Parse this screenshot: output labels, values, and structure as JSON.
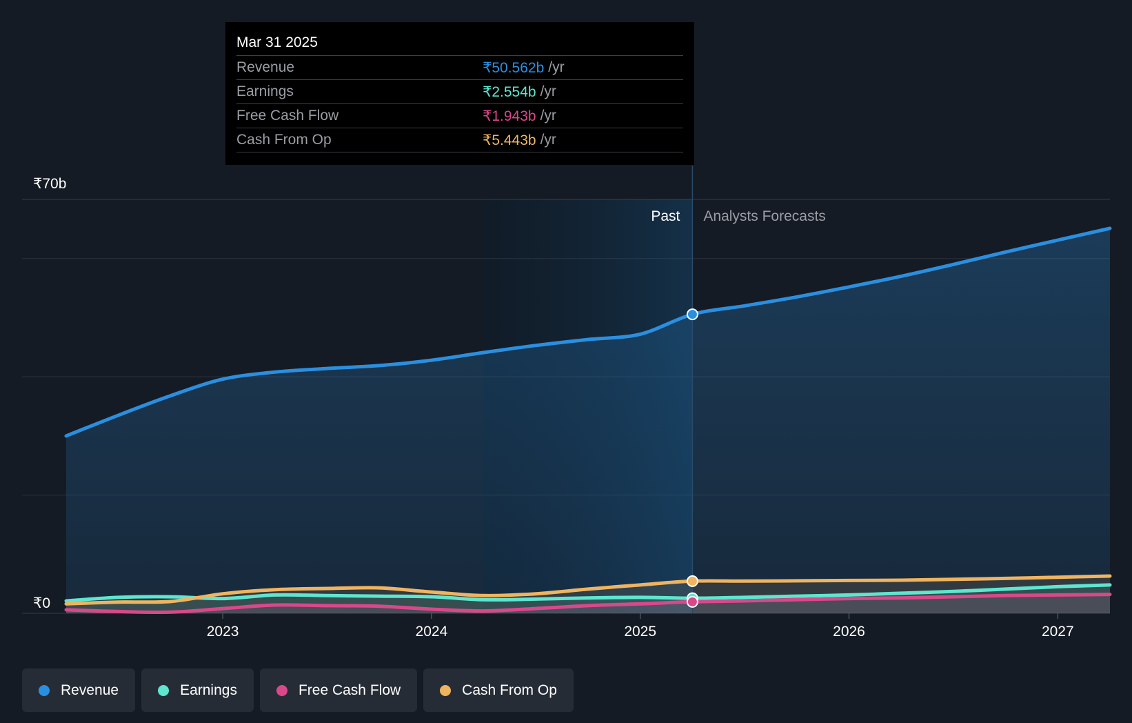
{
  "tooltip": {
    "date": "Mar 31 2025",
    "rows": [
      {
        "label": "Revenue",
        "value": "₹50.562b",
        "unit": "/yr",
        "color": "#2b8fe0"
      },
      {
        "label": "Earnings",
        "value": "₹2.554b",
        "unit": "/yr",
        "color": "#5ee6cf"
      },
      {
        "label": "Free Cash Flow",
        "value": "₹1.943b",
        "unit": "/yr",
        "color": "#d9488a"
      },
      {
        "label": "Cash From Op",
        "value": "₹5.443b",
        "unit": "/yr",
        "color": "#f0b460"
      }
    ]
  },
  "colors": {
    "background": "#151b24",
    "past_shade": "#0f1a26",
    "revenue": "#2b8fe0",
    "earnings": "#5ee6cf",
    "fcf": "#d9488a",
    "cfo": "#f0b460",
    "grid": "#2c333d",
    "text_muted": "#9a9ea4"
  },
  "legend": [
    {
      "label": "Revenue",
      "color": "#2b8fe0"
    },
    {
      "label": "Earnings",
      "color": "#5ee6cf"
    },
    {
      "label": "Free Cash Flow",
      "color": "#d9488a"
    },
    {
      "label": "Cash From Op",
      "color": "#f0b460"
    }
  ],
  "chart_data": {
    "type": "area",
    "title": "",
    "xlabel": "",
    "ylabel": "",
    "y_unit": "₹ billions",
    "ylim": [
      0,
      70
    ],
    "xlim": [
      2022.25,
      2027.25
    ],
    "y_tick_labels": [
      {
        "value": 70,
        "label": "₹70b"
      },
      {
        "value": 0,
        "label": "₹0"
      }
    ],
    "gridlines": [
      0,
      20,
      40,
      60,
      70
    ],
    "x_ticks": [
      {
        "value": 2023,
        "label": "2023"
      },
      {
        "value": 2024,
        "label": "2024"
      },
      {
        "value": 2025,
        "label": "2025"
      },
      {
        "value": 2026,
        "label": "2026"
      },
      {
        "value": 2027,
        "label": "2027"
      }
    ],
    "past_label": "Past",
    "forecast_label": "Analysts Forecasts",
    "past_shade_start": 2024.25,
    "divider_x": 2025.25,
    "series": [
      {
        "name": "Revenue",
        "key": "revenue",
        "points": [
          [
            2022.25,
            30.0
          ],
          [
            2022.5,
            33.5
          ],
          [
            2022.75,
            36.8
          ],
          [
            2023.0,
            39.6
          ],
          [
            2023.25,
            40.8
          ],
          [
            2023.5,
            41.4
          ],
          [
            2023.75,
            41.9
          ],
          [
            2024.0,
            42.8
          ],
          [
            2024.25,
            44.1
          ],
          [
            2024.5,
            45.3
          ],
          [
            2024.75,
            46.3
          ],
          [
            2025.0,
            47.2
          ],
          [
            2025.25,
            50.562
          ],
          [
            2025.5,
            52.0
          ],
          [
            2025.75,
            53.5
          ],
          [
            2026.0,
            55.2
          ],
          [
            2026.25,
            57.0
          ],
          [
            2026.5,
            59.0
          ],
          [
            2026.75,
            61.1
          ],
          [
            2027.0,
            63.1
          ],
          [
            2027.25,
            65.1
          ]
        ]
      },
      {
        "name": "Earnings",
        "key": "earnings",
        "points": [
          [
            2022.25,
            2.1
          ],
          [
            2022.5,
            2.7
          ],
          [
            2022.75,
            2.8
          ],
          [
            2023.0,
            2.5
          ],
          [
            2023.25,
            3.1
          ],
          [
            2023.5,
            3.0
          ],
          [
            2023.75,
            2.9
          ],
          [
            2024.0,
            2.8
          ],
          [
            2024.25,
            2.3
          ],
          [
            2024.5,
            2.4
          ],
          [
            2024.75,
            2.6
          ],
          [
            2025.0,
            2.7
          ],
          [
            2025.25,
            2.554
          ],
          [
            2025.5,
            2.7
          ],
          [
            2025.75,
            2.9
          ],
          [
            2026.0,
            3.1
          ],
          [
            2026.25,
            3.4
          ],
          [
            2026.5,
            3.7
          ],
          [
            2026.75,
            4.1
          ],
          [
            2027.0,
            4.5
          ],
          [
            2027.25,
            4.8
          ]
        ]
      },
      {
        "name": "Free Cash Flow",
        "key": "fcf",
        "points": [
          [
            2022.25,
            0.6
          ],
          [
            2022.5,
            0.3
          ],
          [
            2022.75,
            0.2
          ],
          [
            2023.0,
            0.8
          ],
          [
            2023.25,
            1.4
          ],
          [
            2023.5,
            1.3
          ],
          [
            2023.75,
            1.2
          ],
          [
            2024.0,
            0.7
          ],
          [
            2024.25,
            0.4
          ],
          [
            2024.5,
            0.8
          ],
          [
            2024.75,
            1.3
          ],
          [
            2025.0,
            1.6
          ],
          [
            2025.25,
            1.943
          ],
          [
            2025.5,
            2.1
          ],
          [
            2025.75,
            2.3
          ],
          [
            2026.0,
            2.5
          ],
          [
            2026.25,
            2.6
          ],
          [
            2026.5,
            2.8
          ],
          [
            2026.75,
            3.0
          ],
          [
            2027.0,
            3.1
          ],
          [
            2027.25,
            3.2
          ]
        ]
      },
      {
        "name": "Cash From Op",
        "key": "cfo",
        "points": [
          [
            2022.25,
            1.6
          ],
          [
            2022.5,
            1.9
          ],
          [
            2022.75,
            2.0
          ],
          [
            2023.0,
            3.3
          ],
          [
            2023.25,
            4.0
          ],
          [
            2023.5,
            4.2
          ],
          [
            2023.75,
            4.3
          ],
          [
            2024.0,
            3.6
          ],
          [
            2024.25,
            3.0
          ],
          [
            2024.5,
            3.3
          ],
          [
            2024.75,
            4.1
          ],
          [
            2025.0,
            4.8
          ],
          [
            2025.25,
            5.443
          ],
          [
            2025.5,
            5.45
          ],
          [
            2025.75,
            5.5
          ],
          [
            2026.0,
            5.55
          ],
          [
            2026.25,
            5.6
          ],
          [
            2026.5,
            5.75
          ],
          [
            2026.75,
            5.9
          ],
          [
            2027.0,
            6.1
          ],
          [
            2027.25,
            6.3
          ]
        ]
      }
    ]
  }
}
